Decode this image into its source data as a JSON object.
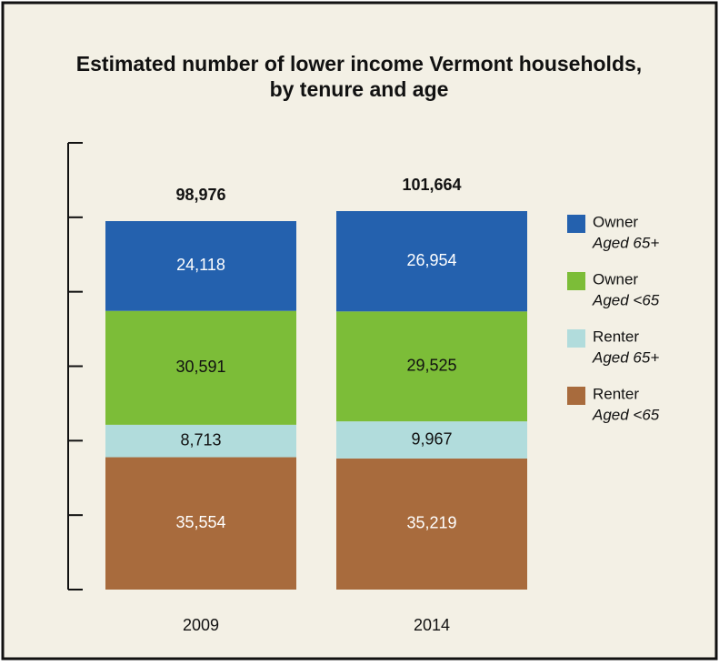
{
  "chart_data": {
    "type": "stacked_bar",
    "title": [
      "Estimated number of lower income Vermont households,",
      "by tenure and age"
    ],
    "categories": [
      "2009",
      "2014"
    ],
    "series": [
      {
        "name": "Renter",
        "age": "Aged <65",
        "color": "#a86b3d",
        "label_color": "#ffffff",
        "values": [
          35554,
          35219
        ],
        "value_labels": [
          "35,554",
          "35,219"
        ]
      },
      {
        "name": "Renter",
        "age": "Aged 65+",
        "color": "#b1dcdc",
        "label_color": "#111111",
        "values": [
          8713,
          9967
        ],
        "value_labels": [
          "8,713",
          "9,967"
        ]
      },
      {
        "name": "Owner",
        "age": "Aged <65",
        "color": "#7cbd38",
        "label_color": "#111111",
        "values": [
          30591,
          29525
        ],
        "value_labels": [
          "30,591",
          "29,525"
        ]
      },
      {
        "name": "Owner",
        "age": "Aged 65+",
        "color": "#2461ae",
        "label_color": "#ffffff",
        "values": [
          24118,
          26954
        ],
        "value_labels": [
          "24,118",
          "26,954"
        ]
      }
    ],
    "totals": {
      "values": [
        98976,
        101664
      ],
      "value_labels": [
        "98,976",
        "101,664"
      ]
    },
    "ylim": [
      0,
      120000
    ],
    "yticks": [
      0,
      20000,
      40000,
      60000,
      80000,
      100000,
      120000
    ]
  }
}
